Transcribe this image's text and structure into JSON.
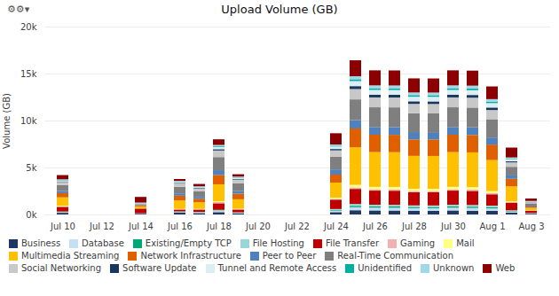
{
  "chart_data": {
    "type": "bar",
    "title": "Upload Volume (GB)",
    "ylabel": "Volume (GB)",
    "annotations": [
      "⚙⚙▾"
    ],
    "stacked": true,
    "grid": true,
    "legend": "bottom",
    "categories": [
      "Jul 10",
      null,
      "Jul 12",
      null,
      "Jul 14",
      null,
      "Jul 16",
      null,
      "Jul 18",
      null,
      "Jul 20",
      null,
      "Jul 22",
      null,
      "Jul 24",
      null,
      "Jul 26",
      null,
      "Jul 28",
      null,
      "Jul 30",
      null,
      "Aug 1",
      null,
      "Aug 3"
    ],
    "ylim": [
      0,
      20000
    ],
    "yticks": [
      {
        "value": 0,
        "label": "0k"
      },
      {
        "value": 5000,
        "label": "5k"
      },
      {
        "value": 10000,
        "label": "10k"
      },
      {
        "value": 15000,
        "label": "15k"
      },
      {
        "value": 20000,
        "label": "20k"
      }
    ],
    "series": [
      {
        "name": "Business",
        "color": "#1f3864",
        "values": [
          180,
          0,
          0,
          0,
          80,
          0,
          200,
          150,
          250,
          100,
          0,
          0,
          0,
          0,
          250,
          450,
          430,
          420,
          400,
          390,
          430,
          400,
          380,
          200,
          80
        ]
      },
      {
        "name": "Database",
        "color": "#c5dff3",
        "values": [
          60,
          0,
          0,
          0,
          20,
          0,
          60,
          60,
          120,
          60,
          0,
          0,
          0,
          0,
          160,
          320,
          290,
          290,
          270,
          270,
          290,
          290,
          270,
          120,
          35
        ]
      },
      {
        "name": "Existing/Empty TCP",
        "color": "#00a878",
        "values": [
          25,
          0,
          0,
          0,
          10,
          0,
          25,
          25,
          50,
          25,
          0,
          0,
          0,
          0,
          70,
          150,
          140,
          140,
          130,
          130,
          140,
          140,
          130,
          55,
          18
        ]
      },
      {
        "name": "File Hosting",
        "color": "#96d8d8",
        "values": [
          45,
          0,
          0,
          0,
          18,
          0,
          40,
          35,
          70,
          40,
          0,
          0,
          0,
          0,
          100,
          200,
          180,
          180,
          170,
          170,
          180,
          180,
          165,
          70,
          22
        ]
      },
      {
        "name": "File Transfer",
        "color": "#c00000",
        "values": [
          500,
          0,
          0,
          0,
          500,
          0,
          200,
          250,
          700,
          300,
          0,
          0,
          0,
          0,
          1000,
          1600,
          1500,
          1500,
          1400,
          1400,
          1500,
          1500,
          1200,
          800,
          250
        ]
      },
      {
        "name": "Gaming",
        "color": "#f4b0b0",
        "values": [
          45,
          0,
          0,
          0,
          12,
          0,
          35,
          35,
          130,
          55,
          0,
          0,
          0,
          0,
          85,
          160,
          150,
          150,
          140,
          140,
          150,
          150,
          130,
          75,
          22
        ]
      },
      {
        "name": "Mail",
        "color": "#ffff80",
        "values": [
          65,
          0,
          0,
          0,
          12,
          0,
          35,
          35,
          90,
          35,
          0,
          0,
          0,
          0,
          130,
          270,
          250,
          250,
          230,
          230,
          250,
          250,
          215,
          75,
          27
        ]
      },
      {
        "name": "Multimedia Streaming",
        "color": "#ffc000",
        "values": [
          900,
          0,
          0,
          0,
          200,
          0,
          900,
          700,
          1800,
          1000,
          0,
          0,
          0,
          0,
          1600,
          4000,
          3700,
          3700,
          3500,
          3500,
          3700,
          3700,
          3300,
          1600,
          250
        ]
      },
      {
        "name": "Network Infrastructure",
        "color": "#e06000",
        "values": [
          450,
          0,
          0,
          0,
          80,
          0,
          500,
          380,
          1000,
          600,
          0,
          0,
          0,
          0,
          850,
          2000,
          1850,
          1850,
          1750,
          1750,
          1850,
          1850,
          1650,
          800,
          150
        ]
      },
      {
        "name": "Peer to Peer",
        "color": "#4f81bd",
        "values": [
          220,
          0,
          0,
          0,
          50,
          0,
          250,
          200,
          500,
          300,
          0,
          0,
          0,
          0,
          550,
          900,
          820,
          820,
          780,
          780,
          820,
          820,
          750,
          360,
          90
        ]
      },
      {
        "name": "Real-Time Communication",
        "color": "#7f7f7f",
        "values": [
          650,
          0,
          0,
          0,
          120,
          0,
          700,
          600,
          1400,
          800,
          0,
          0,
          0,
          0,
          1350,
          2200,
          2100,
          2100,
          2000,
          2000,
          2100,
          2100,
          1950,
          920,
          240
        ]
      },
      {
        "name": "Social Networking",
        "color": "#c8c8c8",
        "values": [
          320,
          0,
          0,
          0,
          60,
          0,
          350,
          280,
          700,
          400,
          0,
          0,
          0,
          0,
          680,
          1100,
          1050,
          1050,
          1000,
          1000,
          1050,
          1050,
          980,
          470,
          125
        ]
      },
      {
        "name": "Software Update",
        "color": "#17375e",
        "values": [
          65,
          0,
          0,
          0,
          28,
          0,
          65,
          65,
          140,
          75,
          0,
          0,
          0,
          0,
          145,
          310,
          290,
          290,
          275,
          275,
          290,
          290,
          265,
          110,
          28
        ]
      },
      {
        "name": "Tunnel and Remote Access",
        "color": "#daeef3",
        "values": [
          110,
          0,
          0,
          0,
          45,
          0,
          110,
          100,
          240,
          130,
          0,
          0,
          0,
          0,
          270,
          540,
          510,
          510,
          490,
          490,
          510,
          510,
          470,
          240,
          55
        ]
      },
      {
        "name": "Unidentified",
        "color": "#00b0a0",
        "values": [
          42,
          0,
          0,
          0,
          12,
          0,
          38,
          28,
          82,
          38,
          0,
          0,
          0,
          0,
          78,
          195,
          182,
          182,
          172,
          172,
          182,
          182,
          165,
          65,
          20
        ]
      },
      {
        "name": "Unknown",
        "color": "#a0d8e8",
        "values": [
          65,
          0,
          0,
          0,
          22,
          0,
          65,
          55,
          130,
          75,
          0,
          0,
          0,
          0,
          130,
          320,
          300,
          300,
          280,
          280,
          300,
          300,
          260,
          110,
          28
        ]
      },
      {
        "name": "Web",
        "color": "#8b0000",
        "values": [
          450,
          0,
          0,
          0,
          600,
          0,
          200,
          250,
          600,
          250,
          0,
          0,
          0,
          0,
          1200,
          1700,
          1600,
          1600,
          1500,
          1500,
          1600,
          1600,
          1350,
          1050,
          260
        ]
      }
    ]
  }
}
